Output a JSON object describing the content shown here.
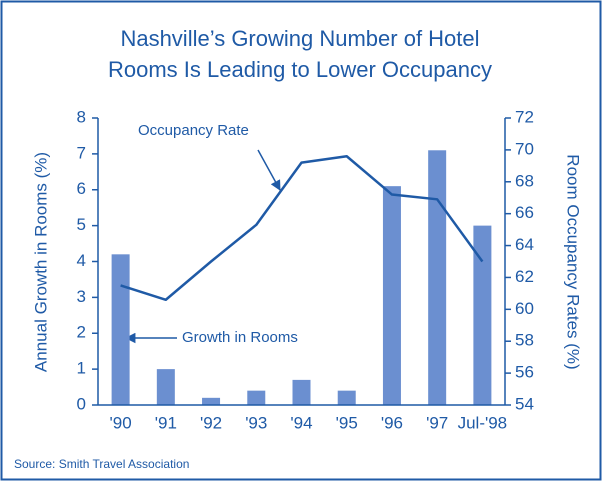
{
  "chart_data": {
    "type": "combo",
    "title": [
      "Nashville’s Growing Number of Hotel",
      "Rooms Is Leading to Lower Occupancy"
    ],
    "y_label": "Annual Growth in Rooms (%)",
    "y2_label": "Room Occupancy Rates (%)",
    "source": "Source: Smith Travel Association",
    "categories": [
      "'90",
      "'91",
      "'92",
      "'93",
      "'94",
      "'95",
      "'96",
      "'97",
      "Jul-'98"
    ],
    "series": [
      {
        "name": "Growth in Rooms",
        "type": "bar",
        "color": "#6b8fd0",
        "values": [
          4.2,
          1.0,
          0.2,
          0.4,
          0.7,
          0.4,
          6.1,
          7.1,
          5.0
        ]
      },
      {
        "name": "Occupancy Rate",
        "type": "line",
        "axis": "y2",
        "color": "#1f5aa6",
        "values": [
          61.5,
          60.6,
          63.0,
          65.3,
          69.2,
          69.6,
          67.2,
          66.9,
          63.0
        ]
      }
    ],
    "ylim": [
      0,
      8
    ],
    "yticks": [
      0,
      1,
      2,
      3,
      4,
      5,
      6,
      7,
      8
    ],
    "y2lim": [
      54,
      72
    ],
    "y2ticks": [
      54,
      56,
      58,
      60,
      62,
      64,
      66,
      68,
      70,
      72
    ]
  }
}
